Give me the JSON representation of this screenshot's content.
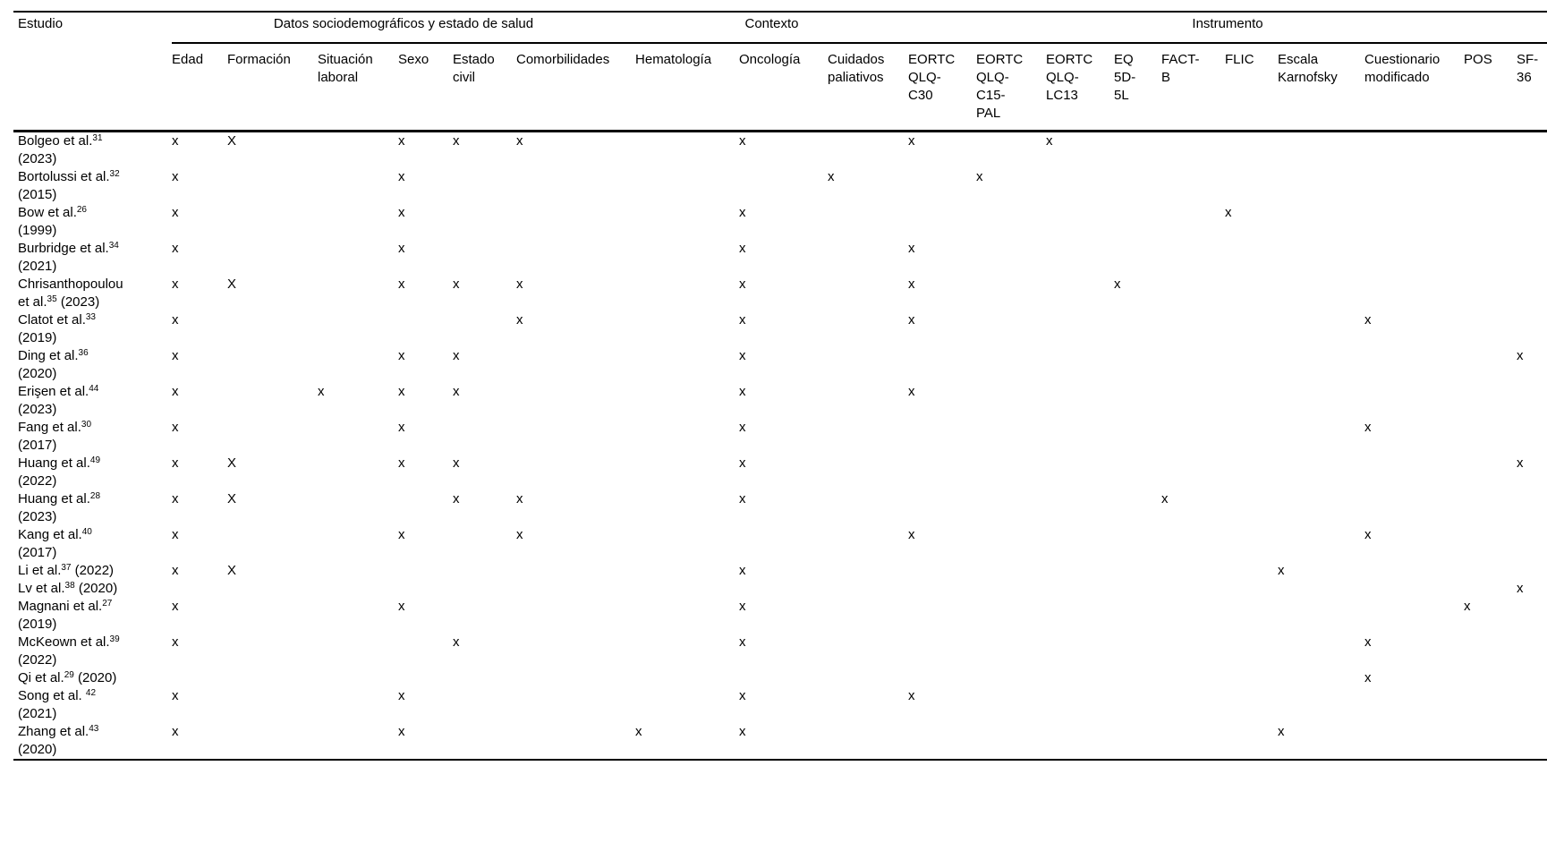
{
  "table": {
    "row_header": "Estudio",
    "groups": [
      {
        "label": "Datos sociodemográficos y estado de salud",
        "span": 6
      },
      {
        "label": "Contexto",
        "span": 3
      },
      {
        "label": "Instrumento",
        "span": 10
      }
    ],
    "columns": [
      {
        "id": "edad",
        "label": "Edad",
        "lines": [
          "Edad"
        ]
      },
      {
        "id": "formacion",
        "label": "Formación",
        "lines": [
          "Formación"
        ]
      },
      {
        "id": "situacion-laboral",
        "label": "Situación laboral",
        "lines": [
          "Situación",
          "laboral"
        ]
      },
      {
        "id": "sexo",
        "label": "Sexo",
        "lines": [
          "Sexo"
        ]
      },
      {
        "id": "estado-civil",
        "label": "Estado civil",
        "lines": [
          "Estado",
          "civil"
        ]
      },
      {
        "id": "comorbilidades",
        "label": "Comorbilidades",
        "lines": [
          "Comorbilidades"
        ]
      },
      {
        "id": "hematologia",
        "label": "Hematología",
        "lines": [
          "Hematología"
        ]
      },
      {
        "id": "oncologia",
        "label": "Oncología",
        "lines": [
          "Oncología"
        ]
      },
      {
        "id": "cuidados-paliativos",
        "label": "Cuidados paliativos",
        "lines": [
          "Cuidados",
          "paliativos"
        ]
      },
      {
        "id": "eortc-qlq-c30",
        "label": "EORTC QLQ-C30",
        "lines": [
          "EORTC",
          "QLQ-",
          "C30"
        ]
      },
      {
        "id": "eortc-qlq-c15-pal",
        "label": "EORTC QLQ-C15-PAL",
        "lines": [
          "EORTC",
          "QLQ-",
          "C15-",
          "PAL"
        ]
      },
      {
        "id": "eortc-qlq-lc13",
        "label": "EORTC QLQ-LC13",
        "lines": [
          "EORTC",
          "QLQ-",
          "LC13"
        ]
      },
      {
        "id": "eq-5d-5l",
        "label": "EQ 5D-5L",
        "lines": [
          "EQ",
          "5D-",
          "5L"
        ]
      },
      {
        "id": "fact-b",
        "label": "FACT-B",
        "lines": [
          "FACT-",
          "B"
        ]
      },
      {
        "id": "flic",
        "label": "FLIC",
        "lines": [
          "FLIC"
        ]
      },
      {
        "id": "escala-karnofsky",
        "label": "Escala Karnofsky",
        "lines": [
          "Escala",
          "Karnofsky"
        ]
      },
      {
        "id": "cuestionario-modificado",
        "label": "Cuestionario modificado",
        "lines": [
          "Cuestionario",
          "modificado"
        ]
      },
      {
        "id": "pos",
        "label": "POS",
        "lines": [
          "POS"
        ]
      },
      {
        "id": "sf-36",
        "label": "SF-36",
        "lines": [
          "SF-",
          "36"
        ]
      }
    ],
    "mark_glyphs": {
      "lower": "x",
      "upper": "X"
    },
    "rows": [
      {
        "label": [
          [
            [
              "Bolgeo et al.",
              false
            ],
            [
              "31",
              true
            ]
          ],
          [
            [
              "(2023)",
              false
            ]
          ]
        ],
        "marks": [
          "x",
          "X",
          "",
          "x",
          "x",
          "x",
          "",
          "x",
          "",
          "x",
          "",
          "x",
          "",
          "",
          "",
          "",
          "",
          "",
          ""
        ]
      },
      {
        "label": [
          [
            [
              "Bortolussi et al.",
              false
            ],
            [
              "32",
              true
            ]
          ],
          [
            [
              "(2015)",
              false
            ]
          ]
        ],
        "marks": [
          "x",
          "",
          "",
          "x",
          "",
          "",
          "",
          "",
          "x",
          "",
          "x",
          "",
          "",
          "",
          "",
          "",
          "",
          "",
          ""
        ]
      },
      {
        "label": [
          [
            [
              "Bow et al.",
              false
            ],
            [
              "26",
              true
            ]
          ],
          [
            [
              "(1999)",
              false
            ]
          ]
        ],
        "marks": [
          "x",
          "",
          "",
          "x",
          "",
          "",
          "",
          "x",
          "",
          "",
          "",
          "",
          "",
          "",
          "x",
          "",
          "",
          "",
          ""
        ]
      },
      {
        "label": [
          [
            [
              "Burbridge et al.",
              false
            ],
            [
              "34",
              true
            ]
          ],
          [
            [
              "(2021)",
              false
            ]
          ]
        ],
        "marks": [
          "x",
          "",
          "",
          "x",
          "",
          "",
          "",
          "x",
          "",
          "x",
          "",
          "",
          "",
          "",
          "",
          "",
          "",
          "",
          ""
        ]
      },
      {
        "label": [
          [
            [
              "Chrisanthopoulou",
              false
            ]
          ],
          [
            [
              "et al.",
              false
            ],
            [
              "35",
              true
            ],
            [
              " (2023)",
              false
            ]
          ]
        ],
        "marks": [
          "x",
          "X",
          "",
          "x",
          "x",
          "x",
          "",
          "x",
          "",
          "x",
          "",
          "",
          "x",
          "",
          "",
          "",
          "",
          "",
          ""
        ]
      },
      {
        "label": [
          [
            [
              "Clatot et al.",
              false
            ],
            [
              "33",
              true
            ]
          ],
          [
            [
              "(2019)",
              false
            ]
          ]
        ],
        "marks": [
          "x",
          "",
          "",
          "",
          "",
          "x",
          "",
          "x",
          "",
          "x",
          "",
          "",
          "",
          "",
          "",
          "",
          "x",
          "",
          ""
        ]
      },
      {
        "label": [
          [
            [
              "Ding et al.",
              false
            ],
            [
              "36",
              true
            ]
          ],
          [
            [
              "(2020)",
              false
            ]
          ]
        ],
        "marks": [
          "x",
          "",
          "",
          "x",
          "x",
          "",
          "",
          "x",
          "",
          "",
          "",
          "",
          "",
          "",
          "",
          "",
          "",
          "",
          "x"
        ]
      },
      {
        "label": [
          [
            [
              "Erişen et al.",
              false
            ],
            [
              "44",
              true
            ]
          ],
          [
            [
              "(2023)",
              false
            ]
          ]
        ],
        "marks": [
          "x",
          "",
          "x",
          "x",
          "x",
          "",
          "",
          "x",
          "",
          "x",
          "",
          "",
          "",
          "",
          "",
          "",
          "",
          "",
          ""
        ]
      },
      {
        "label": [
          [
            [
              "Fang et al.",
              false
            ],
            [
              "30",
              true
            ]
          ],
          [
            [
              "(2017)",
              false
            ]
          ]
        ],
        "marks": [
          "x",
          "",
          "",
          "x",
          "",
          "",
          "",
          "x",
          "",
          "",
          "",
          "",
          "",
          "",
          "",
          "",
          "x",
          "",
          ""
        ]
      },
      {
        "label": [
          [
            [
              "Huang et al.",
              false
            ],
            [
              "49",
              true
            ]
          ],
          [
            [
              "(2022)",
              false
            ]
          ]
        ],
        "marks": [
          "x",
          "X",
          "",
          "x",
          "x",
          "",
          "",
          "x",
          "",
          "",
          "",
          "",
          "",
          "",
          "",
          "",
          "",
          "",
          "x"
        ]
      },
      {
        "label": [
          [
            [
              "Huang et al.",
              false
            ],
            [
              "28",
              true
            ]
          ],
          [
            [
              "(2023)",
              false
            ]
          ]
        ],
        "marks": [
          "x",
          "X",
          "",
          "",
          "x",
          "x",
          "",
          "x",
          "",
          "",
          "",
          "",
          "",
          "x",
          "",
          "",
          "",
          "",
          ""
        ]
      },
      {
        "label": [
          [
            [
              "Kang et al.",
              false
            ],
            [
              "40",
              true
            ]
          ],
          [
            [
              "(2017)",
              false
            ]
          ]
        ],
        "marks": [
          "x",
          "",
          "",
          "x",
          "",
          "x",
          "",
          "",
          "",
          "x",
          "",
          "",
          "",
          "",
          "",
          "",
          "x",
          "",
          ""
        ]
      },
      {
        "label": [
          [
            [
              "Li et al.",
              false
            ],
            [
              "37",
              true
            ],
            [
              " (2022)",
              false
            ]
          ]
        ],
        "marks": [
          "x",
          "X",
          "",
          "",
          "",
          "",
          "",
          "x",
          "",
          "",
          "",
          "",
          "",
          "",
          "",
          "x",
          "",
          "",
          ""
        ]
      },
      {
        "label": [
          [
            [
              "Lv et al.",
              false
            ],
            [
              "38",
              true
            ],
            [
              " (2020)",
              false
            ]
          ]
        ],
        "marks": [
          "",
          "",
          "",
          "",
          "",
          "",
          "",
          "",
          "",
          "",
          "",
          "",
          "",
          "",
          "",
          "",
          "",
          "",
          "x"
        ]
      },
      {
        "label": [
          [
            [
              "Magnani et al.",
              false
            ],
            [
              "27",
              true
            ]
          ],
          [
            [
              "(2019)",
              false
            ]
          ]
        ],
        "marks": [
          "x",
          "",
          "",
          "x",
          "",
          "",
          "",
          "x",
          "",
          "",
          "",
          "",
          "",
          "",
          "",
          "",
          "",
          "x",
          ""
        ]
      },
      {
        "label": [
          [
            [
              "McKeown et al.",
              false
            ],
            [
              "39",
              true
            ]
          ],
          [
            [
              "(2022)",
              false
            ]
          ]
        ],
        "marks": [
          "x",
          "",
          "",
          "",
          "x",
          "",
          "",
          "x",
          "",
          "",
          "",
          "",
          "",
          "",
          "",
          "",
          "x",
          "",
          ""
        ]
      },
      {
        "label": [
          [
            [
              "Qi et al.",
              false
            ],
            [
              "29",
              true
            ],
            [
              " (2020)",
              false
            ]
          ]
        ],
        "marks": [
          "",
          "",
          "",
          "",
          "",
          "",
          "",
          "",
          "",
          "",
          "",
          "",
          "",
          "",
          "",
          "",
          "x",
          "",
          ""
        ]
      },
      {
        "label": [
          [
            [
              "Song et al. ",
              false
            ],
            [
              "42",
              true
            ]
          ],
          [
            [
              "(2021)",
              false
            ]
          ]
        ],
        "marks": [
          "x",
          "",
          "",
          "x",
          "",
          "",
          "",
          "x",
          "",
          "x",
          "",
          "",
          "",
          "",
          "",
          "",
          "",
          "",
          ""
        ]
      },
      {
        "label": [
          [
            [
              "Zhang et al.",
              false
            ],
            [
              "43",
              true
            ]
          ],
          [
            [
              "(2020)",
              false
            ]
          ]
        ],
        "marks": [
          "x",
          "",
          "",
          "x",
          "",
          "",
          "x",
          "x",
          "",
          "",
          "",
          "",
          "",
          "",
          "",
          "x",
          "",
          "",
          ""
        ]
      }
    ]
  }
}
